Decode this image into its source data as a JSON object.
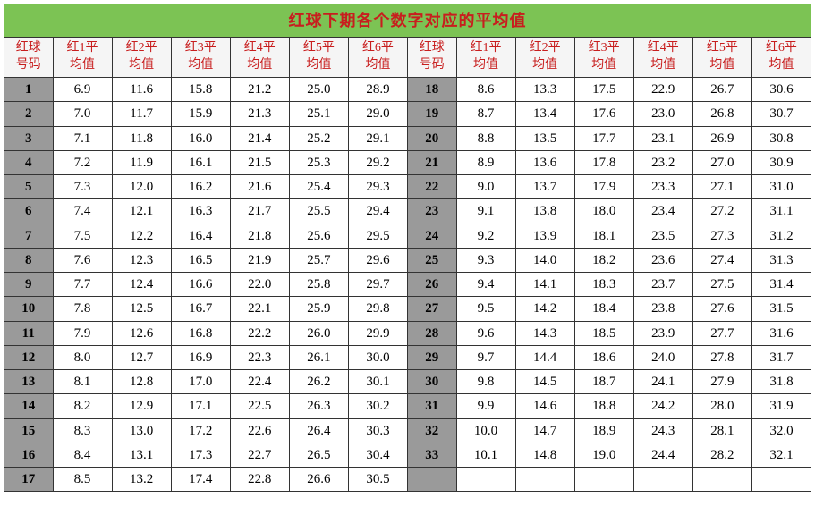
{
  "title": "红球下期各个数字对应的平均值",
  "headers": [
    "红球号码",
    "红1平均值",
    "红2平均值",
    "红3平均值",
    "红4平均值",
    "红5平均值",
    "红6平均值",
    "红球号码",
    "红1平均值",
    "红2平均值",
    "红3平均值",
    "红4平均值",
    "红5平均值",
    "红6平均值"
  ],
  "rows": [
    [
      "1",
      "6.9",
      "11.6",
      "15.8",
      "21.2",
      "25.0",
      "28.9",
      "18",
      "8.6",
      "13.3",
      "17.5",
      "22.9",
      "26.7",
      "30.6"
    ],
    [
      "2",
      "7.0",
      "11.7",
      "15.9",
      "21.3",
      "25.1",
      "29.0",
      "19",
      "8.7",
      "13.4",
      "17.6",
      "23.0",
      "26.8",
      "30.7"
    ],
    [
      "3",
      "7.1",
      "11.8",
      "16.0",
      "21.4",
      "25.2",
      "29.1",
      "20",
      "8.8",
      "13.5",
      "17.7",
      "23.1",
      "26.9",
      "30.8"
    ],
    [
      "4",
      "7.2",
      "11.9",
      "16.1",
      "21.5",
      "25.3",
      "29.2",
      "21",
      "8.9",
      "13.6",
      "17.8",
      "23.2",
      "27.0",
      "30.9"
    ],
    [
      "5",
      "7.3",
      "12.0",
      "16.2",
      "21.6",
      "25.4",
      "29.3",
      "22",
      "9.0",
      "13.7",
      "17.9",
      "23.3",
      "27.1",
      "31.0"
    ],
    [
      "6",
      "7.4",
      "12.1",
      "16.3",
      "21.7",
      "25.5",
      "29.4",
      "23",
      "9.1",
      "13.8",
      "18.0",
      "23.4",
      "27.2",
      "31.1"
    ],
    [
      "7",
      "7.5",
      "12.2",
      "16.4",
      "21.8",
      "25.6",
      "29.5",
      "24",
      "9.2",
      "13.9",
      "18.1",
      "23.5",
      "27.3",
      "31.2"
    ],
    [
      "8",
      "7.6",
      "12.3",
      "16.5",
      "21.9",
      "25.7",
      "29.6",
      "25",
      "9.3",
      "14.0",
      "18.2",
      "23.6",
      "27.4",
      "31.3"
    ],
    [
      "9",
      "7.7",
      "12.4",
      "16.6",
      "22.0",
      "25.8",
      "29.7",
      "26",
      "9.4",
      "14.1",
      "18.3",
      "23.7",
      "27.5",
      "31.4"
    ],
    [
      "10",
      "7.8",
      "12.5",
      "16.7",
      "22.1",
      "25.9",
      "29.8",
      "27",
      "9.5",
      "14.2",
      "18.4",
      "23.8",
      "27.6",
      "31.5"
    ],
    [
      "11",
      "7.9",
      "12.6",
      "16.8",
      "22.2",
      "26.0",
      "29.9",
      "28",
      "9.6",
      "14.3",
      "18.5",
      "23.9",
      "27.7",
      "31.6"
    ],
    [
      "12",
      "8.0",
      "12.7",
      "16.9",
      "22.3",
      "26.1",
      "30.0",
      "29",
      "9.7",
      "14.4",
      "18.6",
      "24.0",
      "27.8",
      "31.7"
    ],
    [
      "13",
      "8.1",
      "12.8",
      "17.0",
      "22.4",
      "26.2",
      "30.1",
      "30",
      "9.8",
      "14.5",
      "18.7",
      "24.1",
      "27.9",
      "31.8"
    ],
    [
      "14",
      "8.2",
      "12.9",
      "17.1",
      "22.5",
      "26.3",
      "30.2",
      "31",
      "9.9",
      "14.6",
      "18.8",
      "24.2",
      "28.0",
      "31.9"
    ],
    [
      "15",
      "8.3",
      "13.0",
      "17.2",
      "22.6",
      "26.4",
      "30.3",
      "32",
      "10.0",
      "14.7",
      "18.9",
      "24.3",
      "28.1",
      "32.0"
    ],
    [
      "16",
      "8.4",
      "13.1",
      "17.3",
      "22.7",
      "26.5",
      "30.4",
      "33",
      "10.1",
      "14.8",
      "19.0",
      "24.4",
      "28.2",
      "32.1"
    ],
    [
      "17",
      "8.5",
      "13.2",
      "17.4",
      "22.8",
      "26.6",
      "30.5",
      "",
      "",
      "",
      "",
      "",
      "",
      ""
    ]
  ],
  "colors": {
    "title_bg": "#7cc354",
    "title_fg": "#c81e1e",
    "hdr_bg": "#f5f5f5",
    "hdr_fg": "#c81e1e",
    "idx_bg": "#9a9a9a",
    "val_bg": "#ffffff",
    "border": "#333333"
  }
}
